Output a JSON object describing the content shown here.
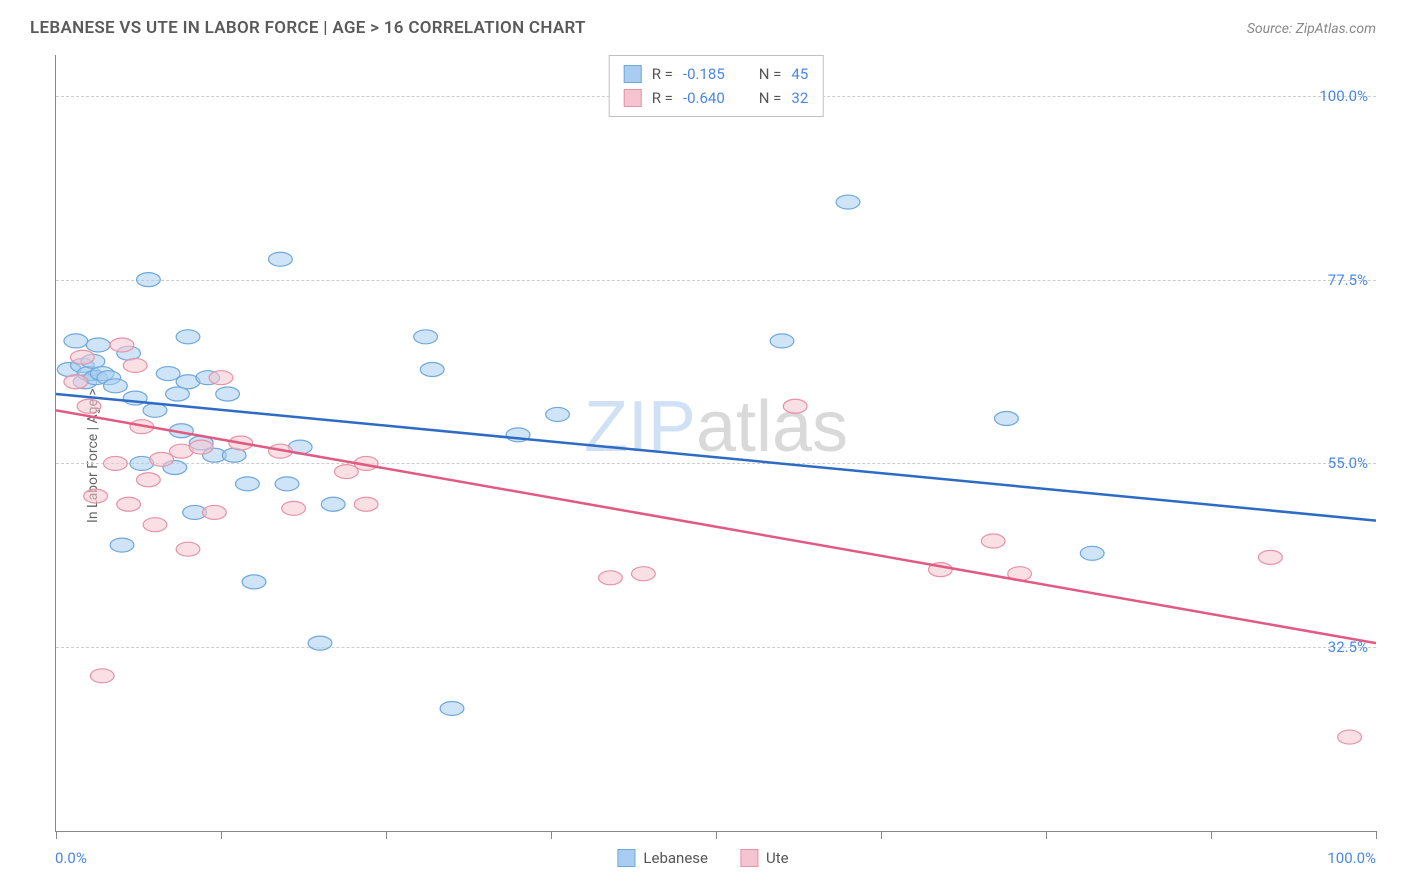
{
  "title": "LEBANESE VS UTE IN LABOR FORCE | AGE > 16 CORRELATION CHART",
  "source": "Source: ZipAtlas.com",
  "y_axis_title": "In Labor Force | Age > 16",
  "watermark": {
    "part1": "ZIP",
    "part2": "atlas"
  },
  "chart": {
    "type": "scatter",
    "xlim": [
      0,
      100
    ],
    "ylim": [
      10,
      105
    ],
    "x_ticks": [
      0,
      12.5,
      25,
      37.5,
      50,
      62.5,
      75,
      87.5,
      100
    ],
    "x_tick_labels_shown": {
      "min": "0.0%",
      "max": "100.0%"
    },
    "y_gridlines": [
      32.5,
      55.0,
      77.5,
      100.0
    ],
    "y_tick_labels": [
      "32.5%",
      "55.0%",
      "77.5%",
      "100.0%"
    ],
    "background_color": "#ffffff",
    "grid_color": "#cccccc",
    "axis_color": "#888888",
    "label_color": "#4a86e8",
    "marker_radius": 9,
    "marker_stroke_width": 1.2,
    "line_width": 2.5,
    "series": [
      {
        "name": "Lebanese",
        "fill_color": "#a8cdf0",
        "stroke_color": "#6fa8dc",
        "line_color": "#2d6bc4",
        "fill_opacity": 0.55,
        "R": "-0.185",
        "N": "45",
        "trend": {
          "x1": 0,
          "y1": 63.5,
          "x2": 100,
          "y2": 48.0
        },
        "points": [
          [
            1.0,
            66.5
          ],
          [
            1.5,
            70.0
          ],
          [
            2.0,
            67.0
          ],
          [
            2.2,
            65.0
          ],
          [
            2.5,
            66.0
          ],
          [
            2.8,
            67.5
          ],
          [
            3.0,
            65.5
          ],
          [
            3.2,
            69.5
          ],
          [
            3.5,
            66.0
          ],
          [
            4.0,
            65.5
          ],
          [
            4.5,
            64.5
          ],
          [
            5.0,
            45.0
          ],
          [
            5.5,
            68.5
          ],
          [
            6.0,
            63.0
          ],
          [
            6.5,
            55.0
          ],
          [
            7.0,
            77.5
          ],
          [
            7.5,
            61.5
          ],
          [
            8.5,
            66.0
          ],
          [
            9.0,
            54.5
          ],
          [
            9.2,
            63.5
          ],
          [
            9.5,
            59.0
          ],
          [
            10.0,
            70.5
          ],
          [
            10.0,
            65.0
          ],
          [
            10.5,
            49.0
          ],
          [
            11.0,
            57.5
          ],
          [
            11.5,
            65.5
          ],
          [
            12.0,
            56.0
          ],
          [
            13.0,
            63.5
          ],
          [
            13.5,
            56.0
          ],
          [
            14.5,
            52.5
          ],
          [
            15.0,
            40.5
          ],
          [
            17.0,
            80.0
          ],
          [
            17.5,
            52.5
          ],
          [
            18.5,
            57.0
          ],
          [
            20.0,
            33.0
          ],
          [
            21.0,
            50.0
          ],
          [
            28.0,
            70.5
          ],
          [
            28.5,
            66.5
          ],
          [
            30.0,
            25.0
          ],
          [
            35.0,
            58.5
          ],
          [
            38.0,
            61.0
          ],
          [
            55.0,
            70.0
          ],
          [
            60.0,
            87.0
          ],
          [
            72.0,
            60.5
          ],
          [
            78.5,
            44.0
          ]
        ]
      },
      {
        "name": "Ute",
        "fill_color": "#f5c4d0",
        "stroke_color": "#e693a8",
        "line_color": "#e05a82",
        "fill_opacity": 0.55,
        "R": "-0.640",
        "N": "32",
        "trend": {
          "x1": 0,
          "y1": 61.5,
          "x2": 100,
          "y2": 33.0
        },
        "points": [
          [
            1.5,
            65.0
          ],
          [
            2.0,
            68.0
          ],
          [
            2.5,
            62.0
          ],
          [
            3.0,
            51.0
          ],
          [
            3.5,
            29.0
          ],
          [
            4.5,
            55.0
          ],
          [
            5.0,
            69.5
          ],
          [
            5.5,
            50.0
          ],
          [
            6.0,
            67.0
          ],
          [
            6.5,
            59.5
          ],
          [
            7.0,
            53.0
          ],
          [
            7.5,
            47.5
          ],
          [
            8.0,
            55.5
          ],
          [
            9.5,
            56.5
          ],
          [
            10.0,
            44.5
          ],
          [
            11.0,
            57.0
          ],
          [
            12.0,
            49.0
          ],
          [
            12.5,
            65.5
          ],
          [
            14.0,
            57.5
          ],
          [
            17.0,
            56.5
          ],
          [
            18.0,
            49.5
          ],
          [
            22.0,
            54.0
          ],
          [
            23.5,
            50.0
          ],
          [
            23.5,
            55.0
          ],
          [
            42.0,
            41.0
          ],
          [
            44.5,
            41.5
          ],
          [
            56.0,
            62.0
          ],
          [
            67.0,
            42.0
          ],
          [
            71.0,
            45.5
          ],
          [
            73.0,
            41.5
          ],
          [
            92.0,
            43.5
          ],
          [
            98.0,
            21.5
          ]
        ]
      }
    ]
  },
  "bottom_legend": [
    {
      "label": "Lebanese",
      "series_index": 0
    },
    {
      "label": "Ute",
      "series_index": 1
    }
  ]
}
